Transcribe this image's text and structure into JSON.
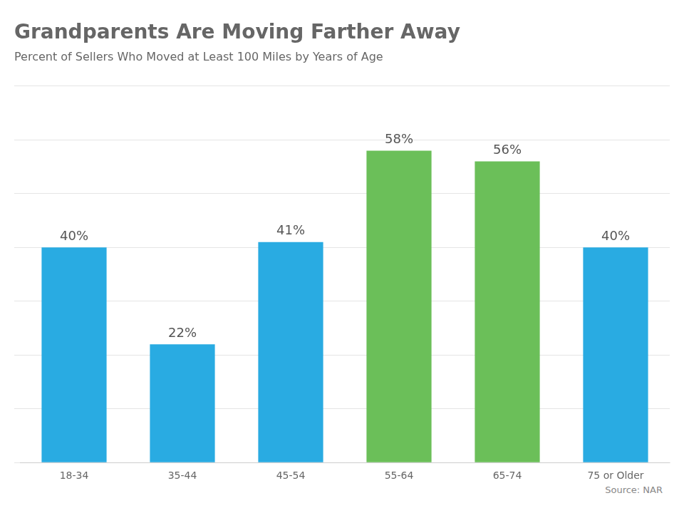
{
  "chart_data": {
    "type": "bar",
    "title": "Grandparents Are Moving Farther Away",
    "subtitle": "Percent of Sellers Who Moved at Least 100 Miles by Years of Age",
    "source": "Source: NAR",
    "categories": [
      "18-34",
      "35-44",
      "45-54",
      "55-64",
      "65-74",
      "75 or Older"
    ],
    "values": [
      40,
      22,
      41,
      58,
      56,
      40
    ],
    "value_labels": [
      "40%",
      "22%",
      "41%",
      "58%",
      "56%",
      "40%"
    ],
    "colors": [
      "#29ABE2",
      "#29ABE2",
      "#29ABE2",
      "#6BBF59",
      "#6BBF59",
      "#29ABE2"
    ],
    "ylim": [
      0,
      70
    ],
    "yticks": [
      0,
      10,
      20,
      30,
      40,
      50,
      60,
      70
    ],
    "grid": true,
    "data_labels": true,
    "tick_labels": "x"
  }
}
